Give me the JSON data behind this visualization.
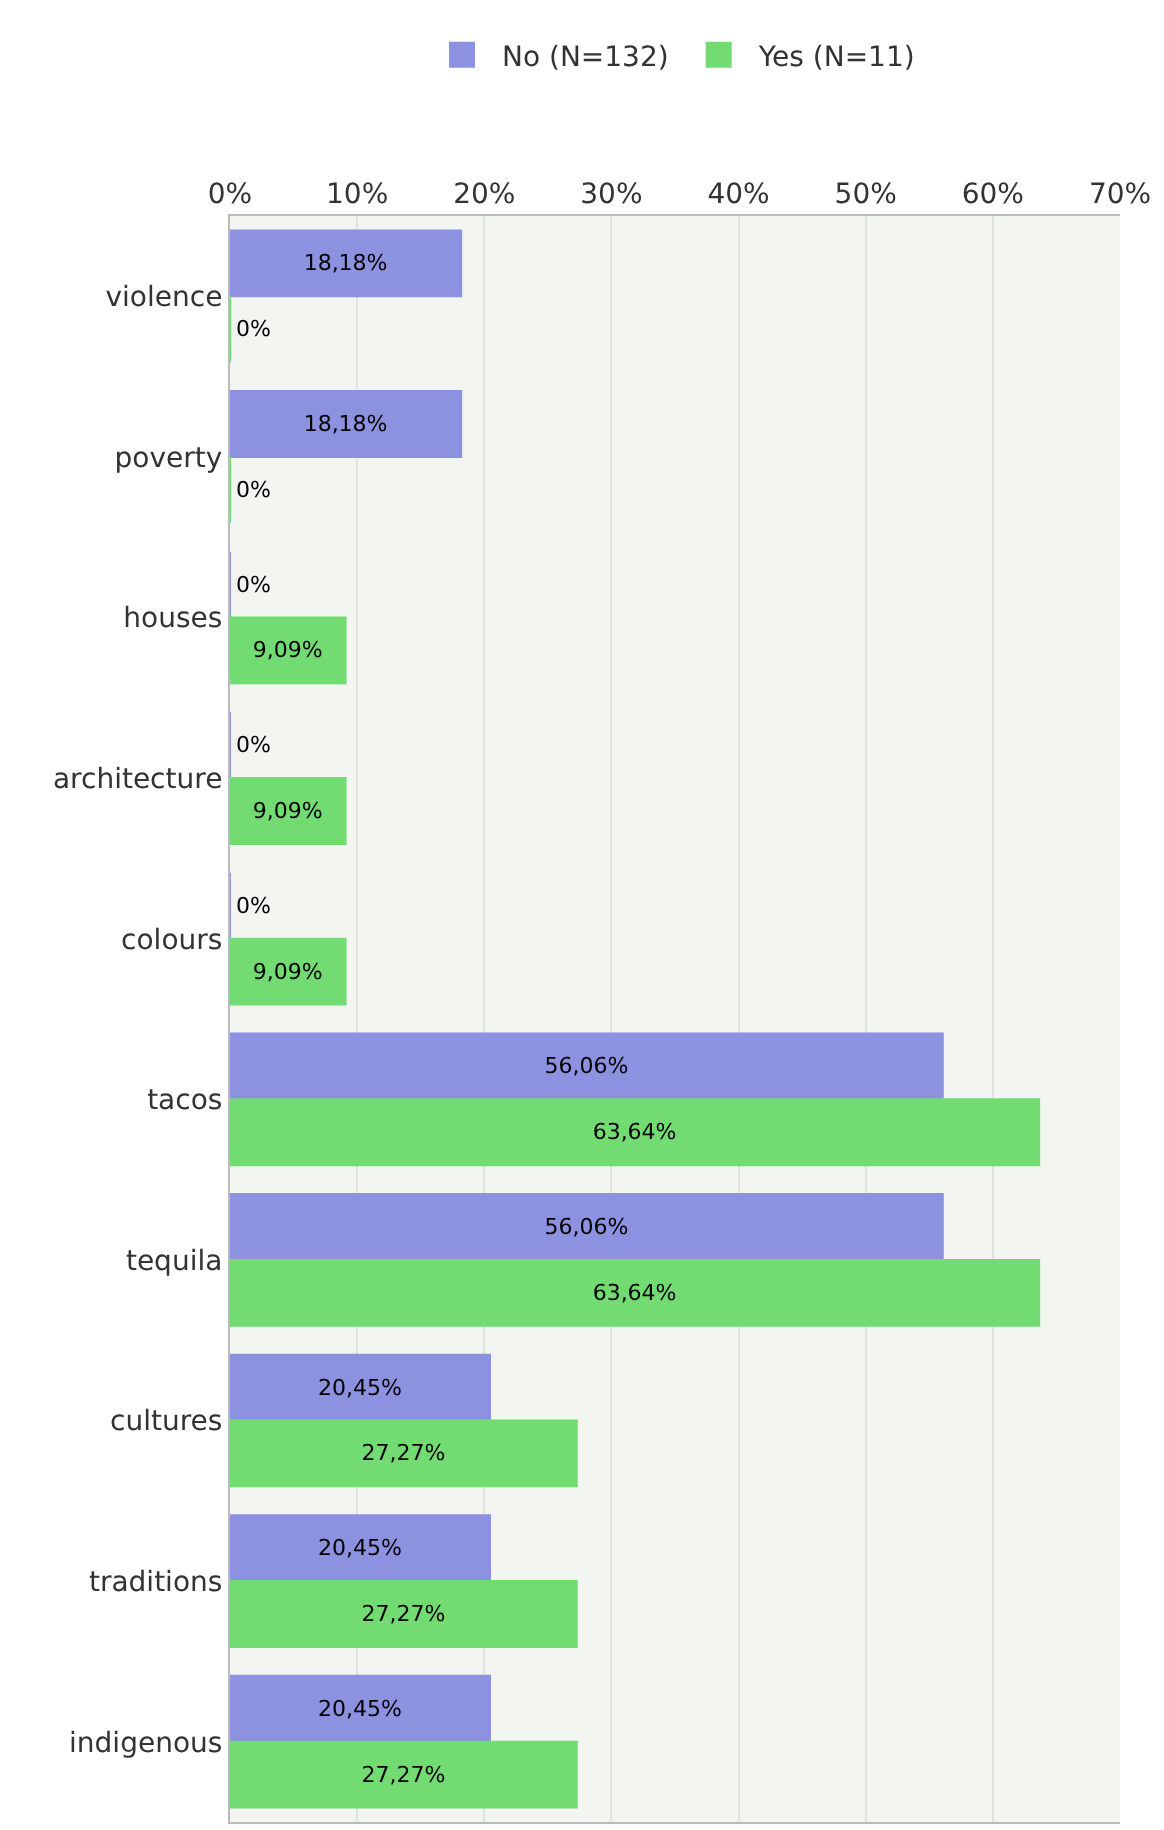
{
  "chart_data": {
    "type": "bar",
    "orientation": "horizontal",
    "categories": [
      "violence",
      "poverty",
      "houses",
      "architecture",
      "colours",
      "tacos",
      "tequila",
      "cultures",
      "traditions",
      "indigenous"
    ],
    "series": [
      {
        "name": "No (N=132)",
        "color": "#8c91e0",
        "values": [
          18.18,
          18.18,
          0,
          0,
          0,
          56.06,
          56.06,
          20.45,
          20.45,
          20.45
        ],
        "value_labels": [
          "18,18%",
          "18,18%",
          "0%",
          "0%",
          "0%",
          "56,06%",
          "56,06%",
          "20,45%",
          "20,45%",
          "20,45%"
        ]
      },
      {
        "name": "Yes (N=11)",
        "color": "#72dc72",
        "values": [
          0,
          0,
          9.09,
          9.09,
          9.09,
          63.64,
          63.64,
          27.27,
          27.27,
          27.27
        ],
        "value_labels": [
          "0%",
          "0%",
          "9,09%",
          "9,09%",
          "9,09%",
          "63,64%",
          "63,64%",
          "27,27%",
          "27,27%",
          "27,27%"
        ]
      }
    ],
    "xlim": [
      0,
      70
    ],
    "xticks": [
      {
        "value": 0,
        "label": "0%"
      },
      {
        "value": 10,
        "label": "10%"
      },
      {
        "value": 20,
        "label": "20%"
      },
      {
        "value": 30,
        "label": "30%"
      },
      {
        "value": 40,
        "label": "40%"
      },
      {
        "value": 50,
        "label": "50%"
      },
      {
        "value": 60,
        "label": "60%"
      },
      {
        "value": 70,
        "label": "70%"
      }
    ],
    "grid": "x",
    "legend": "top"
  }
}
